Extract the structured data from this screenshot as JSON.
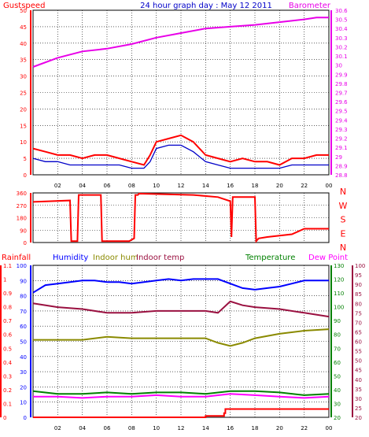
{
  "title": "24 hour graph day : May 12 2011",
  "colors": {
    "gust": "#ff0000",
    "wind": "#0000c8",
    "baro": "#e800e8",
    "dir": "#ff0000",
    "rain": "#ff0000",
    "hum": "#0000ff",
    "inhum": "#8a8a00",
    "intemp": "#9a1040",
    "temp": "#008000",
    "dew": "#ff00ff",
    "grid": "#000000"
  },
  "chart_data": [
    {
      "type": "line",
      "title": "24 hour graph day : May 12 2011",
      "x_ticks": [
        "02",
        "04",
        "06",
        "08",
        "10",
        "12",
        "14",
        "16",
        "18",
        "20",
        "22",
        "00"
      ],
      "left_label": "Gustspeed",
      "right_label": "Barometer",
      "left_ticks": [
        "0",
        "5",
        "10",
        "15",
        "20",
        "25",
        "30",
        "35",
        "40",
        "45",
        "50"
      ],
      "right_ticks": [
        "28.8",
        "28.9",
        "29",
        "29.1",
        "29.2",
        "29.3",
        "29.4",
        "29.5",
        "29.6",
        "29.7",
        "29.8",
        "29.9",
        "30",
        "30.1",
        "30.2",
        "30.3",
        "30.4",
        "30.5",
        "30.6"
      ],
      "ylim_left": [
        0,
        50
      ],
      "ylim_right": [
        28.8,
        30.6
      ],
      "series": [
        {
          "name": "Gustspeed",
          "axis": "left",
          "x": [
            0,
            1,
            2,
            3,
            4,
            5,
            6,
            7,
            8,
            9,
            9.5,
            10,
            11,
            12,
            13,
            14,
            15,
            16,
            17,
            18,
            19,
            20,
            21,
            22,
            23,
            24
          ],
          "values": [
            8,
            7,
            6,
            6,
            5,
            6,
            6,
            5,
            4,
            3,
            6,
            10,
            11,
            12,
            10,
            6,
            5,
            4,
            5,
            4,
            4,
            3,
            5,
            5,
            6,
            6
          ]
        },
        {
          "name": "Windspeed",
          "axis": "left",
          "x": [
            0,
            1,
            2,
            3,
            4,
            5,
            6,
            7,
            8,
            9,
            9.5,
            10,
            11,
            12,
            13,
            14,
            15,
            16,
            17,
            18,
            19,
            20,
            21,
            22,
            23,
            24
          ],
          "values": [
            5,
            4,
            4,
            3,
            3,
            3,
            3,
            3,
            2,
            2,
            4,
            8,
            9,
            9,
            7,
            4,
            3,
            2,
            2,
            2,
            2,
            2,
            3,
            3,
            3,
            3
          ]
        },
        {
          "name": "Barometer",
          "axis": "right",
          "x": [
            0,
            2,
            4,
            6,
            8,
            10,
            12,
            14,
            16,
            18,
            20,
            22,
            23,
            24
          ],
          "values": [
            29.98,
            30.08,
            30.15,
            30.18,
            30.23,
            30.3,
            30.35,
            30.4,
            30.42,
            30.44,
            30.47,
            30.5,
            30.52,
            30.52
          ]
        }
      ]
    },
    {
      "type": "line",
      "left_ticks": [
        "0",
        "90",
        "180",
        "270",
        "360"
      ],
      "right_ticks": [
        "N",
        "W",
        "S",
        "E",
        "N"
      ],
      "ylim": [
        0,
        360
      ],
      "x_ticks": [
        "02",
        "04",
        "06",
        "08",
        "10",
        "12",
        "14",
        "16",
        "18",
        "20",
        "22",
        "00"
      ],
      "series": [
        {
          "name": "Wind direction",
          "x": [
            0,
            3,
            3.1,
            3.6,
            3.7,
            5.5,
            5.6,
            7.8,
            8.2,
            8.3,
            8.5,
            8.6,
            13,
            15,
            16,
            16.1,
            16.2,
            16.3,
            18,
            18.1,
            18.3,
            19,
            21,
            22,
            24
          ],
          "values": [
            295,
            305,
            10,
            10,
            345,
            345,
            10,
            10,
            30,
            345,
            345,
            355,
            345,
            330,
            300,
            40,
            330,
            330,
            330,
            10,
            30,
            40,
            60,
            100,
            100
          ]
        }
      ]
    },
    {
      "type": "line",
      "labels": [
        "Rainfall",
        "Humidity",
        "Indoor hum",
        "Indoor temp",
        "Temperature",
        "Dew Point"
      ],
      "rain_ticks": [
        "0",
        "0.1",
        "0.2",
        "0.3",
        "0.4",
        "0.5",
        "0.6",
        "0.7",
        "0.8",
        "0.9",
        "1",
        "1.1"
      ],
      "hum_ticks": [
        "0",
        "10",
        "20",
        "30",
        "40",
        "50",
        "60",
        "70",
        "80",
        "90",
        "100"
      ],
      "temp_ticks": [
        "20",
        "30",
        "40",
        "50",
        "60",
        "70",
        "80",
        "90",
        "100",
        "110",
        "120",
        "130"
      ],
      "temp2_ticks": [
        "20",
        "25",
        "30",
        "35",
        "40",
        "45",
        "50",
        "55",
        "60",
        "65",
        "70",
        "75",
        "80",
        "85",
        "90",
        "95",
        "100"
      ],
      "x_ticks": [
        "02",
        "04",
        "06",
        "08",
        "10",
        "12",
        "14",
        "16",
        "18",
        "20",
        "22",
        "00"
      ],
      "series": [
        {
          "name": "Humidity",
          "axis": "hum",
          "x": [
            0,
            1,
            2,
            3,
            4,
            5,
            6,
            7,
            8,
            9,
            10,
            11,
            12,
            13,
            14,
            15,
            16,
            17,
            18,
            19,
            20,
            21,
            22,
            23,
            24
          ],
          "values": [
            82,
            87,
            88,
            89,
            90,
            90,
            89,
            89,
            88,
            89,
            90,
            91,
            90,
            91,
            91,
            91,
            88,
            85,
            84,
            85,
            86,
            88,
            90,
            90,
            90
          ]
        },
        {
          "name": "Indoor temp",
          "axis": "temp2",
          "x": [
            0,
            2,
            4,
            6,
            8,
            10,
            12,
            14,
            15,
            16,
            17,
            18,
            20,
            22,
            24
          ],
          "values": [
            80,
            78,
            77,
            75,
            75,
            76,
            76,
            76,
            75,
            81,
            79,
            78,
            77,
            75,
            73
          ]
        },
        {
          "name": "Indoor hum",
          "axis": "hum",
          "x": [
            0,
            2,
            4,
            6,
            8,
            10,
            12,
            14,
            15,
            16,
            17,
            18,
            20,
            22,
            24
          ],
          "values": [
            51,
            51,
            51,
            53,
            52,
            52,
            52,
            52,
            49,
            47,
            49,
            52,
            55,
            57,
            58
          ]
        },
        {
          "name": "Temperature",
          "axis": "temp",
          "x": [
            0,
            2,
            4,
            6,
            8,
            10,
            12,
            14,
            16,
            18,
            20,
            22,
            24
          ],
          "values": [
            39,
            37,
            37,
            38,
            37,
            38,
            38,
            37,
            39,
            39,
            38,
            36,
            37
          ]
        },
        {
          "name": "Dew Point",
          "axis": "temp",
          "x": [
            0,
            2,
            4,
            6,
            8,
            10,
            12,
            14,
            16,
            18,
            20,
            22,
            24
          ],
          "values": [
            35,
            35,
            34,
            35,
            35,
            36,
            35,
            35,
            37,
            36,
            35,
            34,
            35
          ]
        },
        {
          "name": "Rainfall",
          "axis": "rain",
          "x": [
            0,
            14,
            15.5,
            15.6,
            24
          ],
          "values": [
            0,
            0.01,
            0.03,
            0.06,
            0.06
          ]
        }
      ]
    }
  ]
}
